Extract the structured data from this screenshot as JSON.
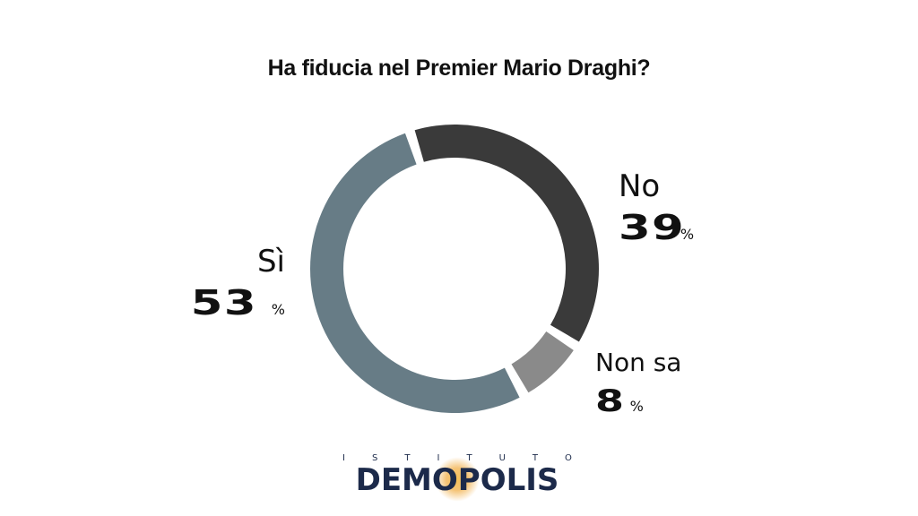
{
  "chart_data": {
    "type": "pie",
    "title": "Ha fiducia nel Premier Mario Draghi?",
    "unit": "%",
    "slices": [
      {
        "label": "No",
        "value": 39,
        "color": "#3a3a3a"
      },
      {
        "label": "Non sa",
        "value": 8,
        "color": "#8a8a8a"
      },
      {
        "label": "Sì",
        "value": 53,
        "color": "#677c86"
      }
    ]
  },
  "logo": {
    "top_text": [
      "I",
      "S",
      "T",
      "I",
      "T",
      "U",
      "T",
      "O"
    ],
    "brand_text": "DEMOPOLIS"
  }
}
